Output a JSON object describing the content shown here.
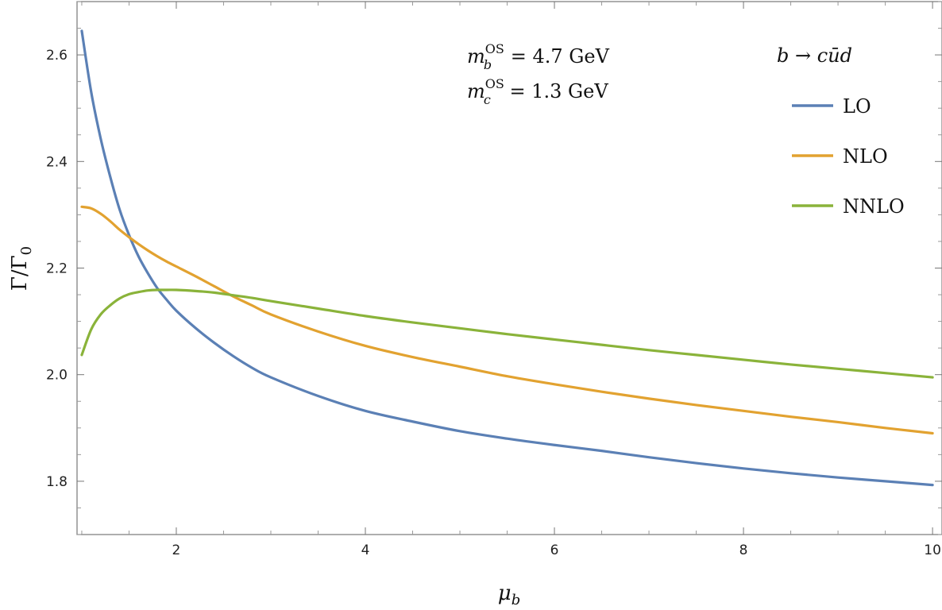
{
  "chart_data": {
    "type": "line",
    "title": "",
    "xlabel": "μb",
    "ylabel": "Γ/Γ0",
    "xlim": [
      0.95,
      10.1
    ],
    "ylim": [
      1.7,
      2.7
    ],
    "xticks": [
      2,
      4,
      6,
      8,
      10
    ],
    "yticks": [
      1.8,
      2.0,
      2.2,
      2.4,
      2.6
    ],
    "ytick_labels": [
      "1.8",
      "2.0",
      "2.2",
      "2.4",
      "2.6"
    ],
    "grid": false,
    "legend_position": "top-right",
    "legend_title": "b → cūd",
    "annotations": [
      "mb^OS = 4.7 GeV",
      "mc^OS = 1.3 GeV"
    ],
    "annotation_parts": [
      {
        "sym": "m",
        "sub": "b",
        "sup": "OS",
        "rest": " = 4.7 GeV"
      },
      {
        "sym": "m",
        "sub": "c",
        "sup": "OS",
        "rest": " = 1.3 GeV"
      }
    ],
    "x": [
      1.0,
      1.1,
      1.2,
      1.3,
      1.4,
      1.5,
      1.6,
      1.7,
      1.8,
      1.9,
      2.0,
      2.2,
      2.4,
      2.6,
      2.8,
      3.0,
      3.5,
      4.0,
      4.5,
      5.0,
      5.5,
      6.0,
      6.5,
      7.0,
      7.5,
      8.0,
      8.5,
      9.0,
      9.5,
      10.0
    ],
    "series": [
      {
        "name": "LO",
        "color": "#5b80b5",
        "values": [
          2.645,
          2.53,
          2.443,
          2.372,
          2.31,
          2.262,
          2.222,
          2.19,
          2.162,
          2.14,
          2.12,
          2.088,
          2.06,
          2.035,
          2.013,
          1.995,
          1.96,
          1.932,
          1.912,
          1.894,
          1.88,
          1.868,
          1.857,
          1.845,
          1.834,
          1.824,
          1.815,
          1.807,
          1.8,
          1.793
        ]
      },
      {
        "name": "NLO",
        "color": "#e2a230",
        "values": [
          2.315,
          2.312,
          2.302,
          2.288,
          2.272,
          2.258,
          2.245,
          2.233,
          2.222,
          2.212,
          2.203,
          2.185,
          2.166,
          2.147,
          2.13,
          2.113,
          2.081,
          2.054,
          2.033,
          2.015,
          1.997,
          1.982,
          1.968,
          1.955,
          1.943,
          1.932,
          1.921,
          1.911,
          1.9,
          1.89
        ]
      },
      {
        "name": "NNLO",
        "color": "#8ab33a",
        "values": [
          2.037,
          2.085,
          2.113,
          2.13,
          2.143,
          2.151,
          2.155,
          2.158,
          2.159,
          2.159,
          2.159,
          2.157,
          2.154,
          2.149,
          2.144,
          2.138,
          2.124,
          2.11,
          2.098,
          2.087,
          2.076,
          2.066,
          2.056,
          2.046,
          2.037,
          2.028,
          2.019,
          2.011,
          2.003,
          1.995
        ]
      }
    ]
  }
}
